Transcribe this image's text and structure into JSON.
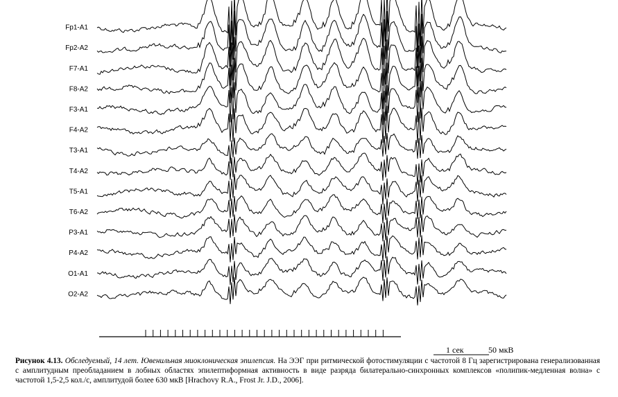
{
  "channels": [
    "Fp1-A1",
    "Fp2-A2",
    "F7-A1",
    "F8-A2",
    "F3-A1",
    "F4-A2",
    "T3-A1",
    "T4-A2",
    "T5-A1",
    "T6-A2",
    "P3-A1",
    "P4-A2",
    "O1-A1",
    "O2-A2"
  ],
  "scale": {
    "time": "1 сек",
    "amplitude": "50 мкВ"
  },
  "caption": {
    "label": "Рисунок 4.13.",
    "subject": "Обследуемый, 14 лет. Ювенильная миоклоническая эпилепсия.",
    "text": "На ЭЭГ при ритмической фотостимуляции с частотой 8 Гц зарегистрирована генерализованная с амплитудным преобладанием в лобных областях эпилептиформная активность в виде разряда билатерально-синхронных комплексов «полипик-медленная волна» с частотой 1,5-2,5 кол./с, амплитудой более 630 мкВ [Hrachovy R.A., Frost Jr. J.D., 2006]."
  }
}
